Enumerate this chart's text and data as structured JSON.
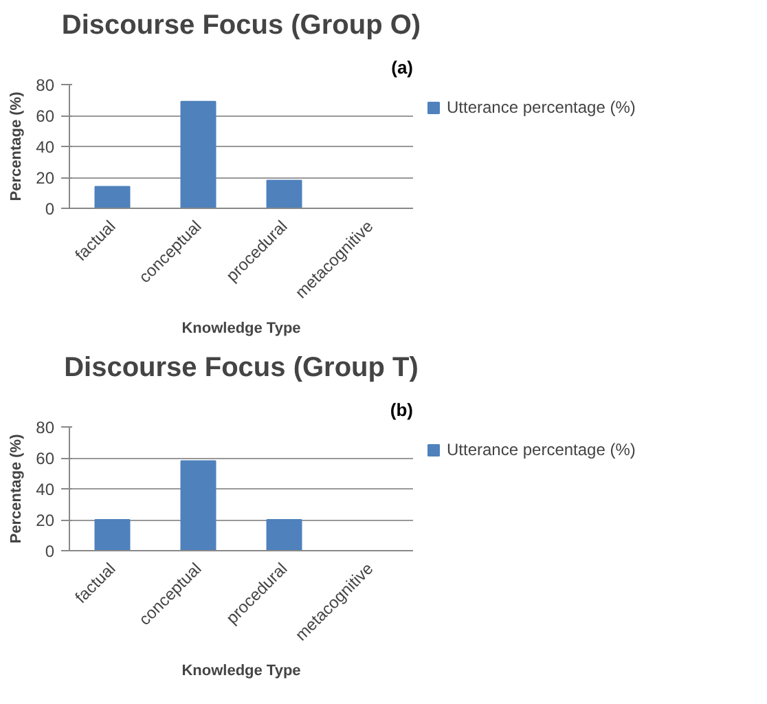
{
  "chart_data": [
    {
      "type": "bar",
      "title": "Discourse Focus (Group O)",
      "xlabel": "Knowledge Type",
      "ylabel": "Percentage (%)",
      "annotations": [
        "(a)"
      ],
      "categories": [
        "factual",
        "conceptual",
        "procedural",
        "metacognitive"
      ],
      "series": [
        {
          "name": "Utterance percentage (%)",
          "color": "#4f81bd",
          "values": [
            14,
            69,
            18,
            0
          ]
        }
      ],
      "ylim": [
        0,
        80
      ],
      "yticks": [
        0,
        20,
        40,
        60,
        80
      ],
      "grid": "y",
      "legend": "right"
    },
    {
      "type": "bar",
      "title": "Discourse Focus (Group T)",
      "xlabel": "Knowledge Type",
      "ylabel": "Percentage (%)",
      "annotations": [
        "(b)"
      ],
      "categories": [
        "factual",
        "conceptual",
        "procedural",
        "metacognitive"
      ],
      "series": [
        {
          "name": "Utterance percentage (%)",
          "color": "#4f81bd",
          "values": [
            20,
            58,
            20,
            0
          ]
        }
      ],
      "ylim": [
        0,
        80
      ],
      "yticks": [
        0,
        20,
        40,
        60,
        80
      ],
      "grid": "y",
      "legend": "right"
    }
  ]
}
